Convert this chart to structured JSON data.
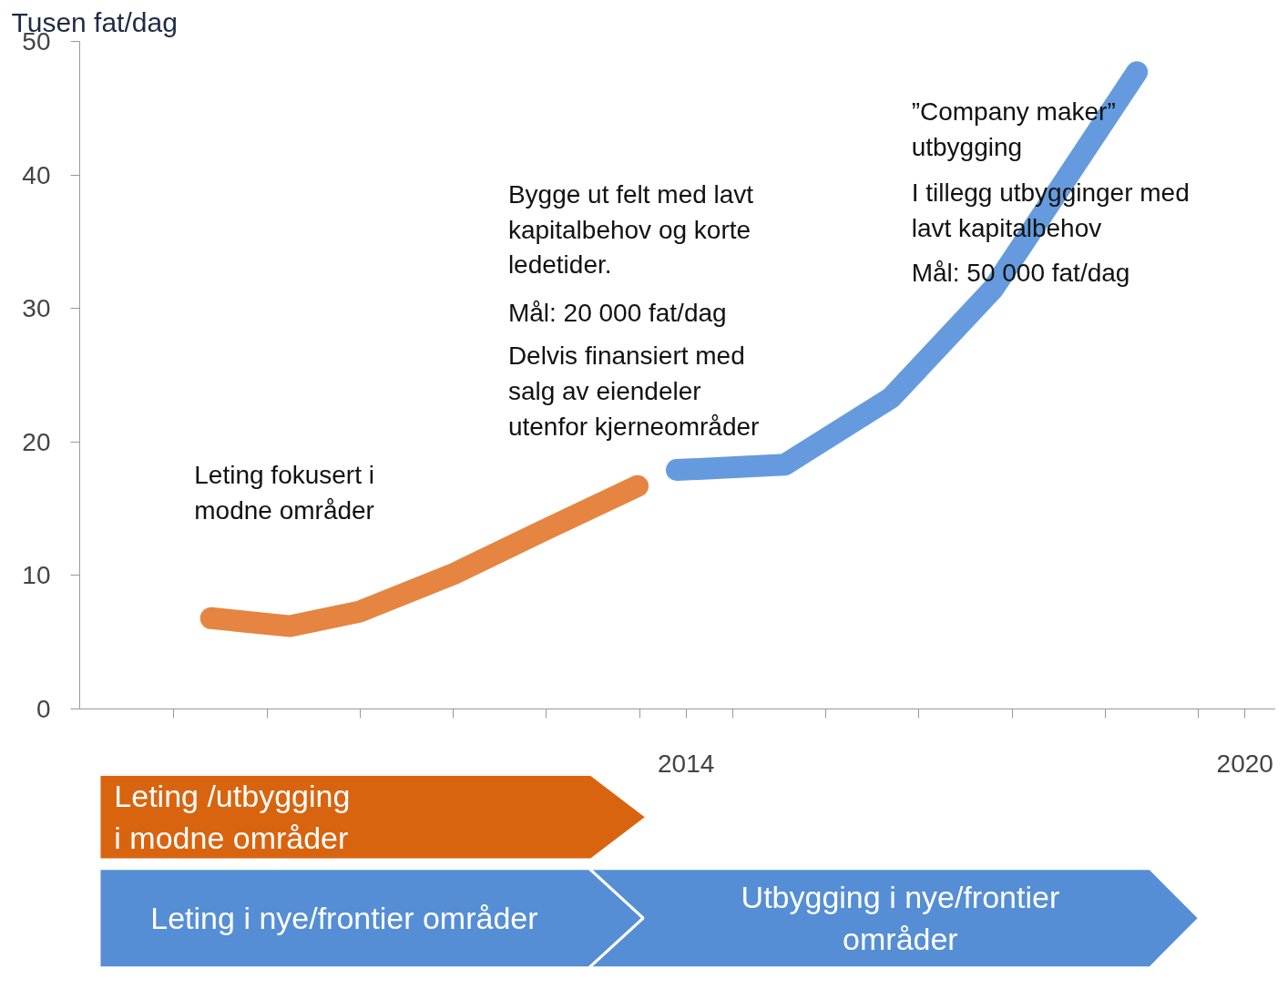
{
  "chart_data": {
    "type": "line",
    "ylabel": "Tusen fat/dag",
    "xlim": [
      2007.49,
      2020.33
    ],
    "ylim": [
      0,
      50
    ],
    "xticks": [
      {
        "value": 2008.5,
        "label": null
      },
      {
        "value": 2009.5,
        "label": null
      },
      {
        "value": 2010.5,
        "label": null
      },
      {
        "value": 2011.5,
        "label": null
      },
      {
        "value": 2012.5,
        "label": null
      },
      {
        "value": 2013.5,
        "label": null
      },
      {
        "value": 2014,
        "label": "2014"
      },
      {
        "value": 2014.5,
        "label": null
      },
      {
        "value": 2015.5,
        "label": null
      },
      {
        "value": 2016.5,
        "label": null
      },
      {
        "value": 2017.5,
        "label": null
      },
      {
        "value": 2018.5,
        "label": null
      },
      {
        "value": 2019.5,
        "label": null
      },
      {
        "value": 2020,
        "label": "2020"
      }
    ],
    "yticks": [
      0,
      10,
      20,
      30,
      40,
      50
    ],
    "grid": false,
    "series": [
      {
        "color": "#e07020",
        "x": [
          2008.9,
          2009.75,
          2010.5,
          2011.5,
          2012.45,
          2013.48
        ],
        "values": [
          6.8,
          6.2,
          7.3,
          10.1,
          13.3,
          16.7
        ]
      },
      {
        "color": "#4a8ad8",
        "x": [
          2013.9,
          2015.06,
          2016.2,
          2017.3,
          2018.25,
          2018.84
        ],
        "values": [
          17.9,
          18.3,
          23.3,
          31.5,
          41.5,
          47.7
        ]
      }
    ],
    "annotations": [
      "Leting fokusert i\nmodne områder",
      "Bygge ut felt med lavt\nkapitalbehov og korte\nledetider.",
      "Mål: 20 000 fat/dag",
      "Delvis finansiert med\nsalg av eiendeler\nutenfor kjerneområder",
      "”Company maker”\nutbygging",
      "I tillegg utbygginger med\nlavt kapitalbehov",
      "Mål: 50 000 fat/dag",
      "Leting /utbygging\ni modne områder",
      "Leting i nye/frontier områder",
      "Utbygging i nye/frontier\nområder"
    ]
  }
}
